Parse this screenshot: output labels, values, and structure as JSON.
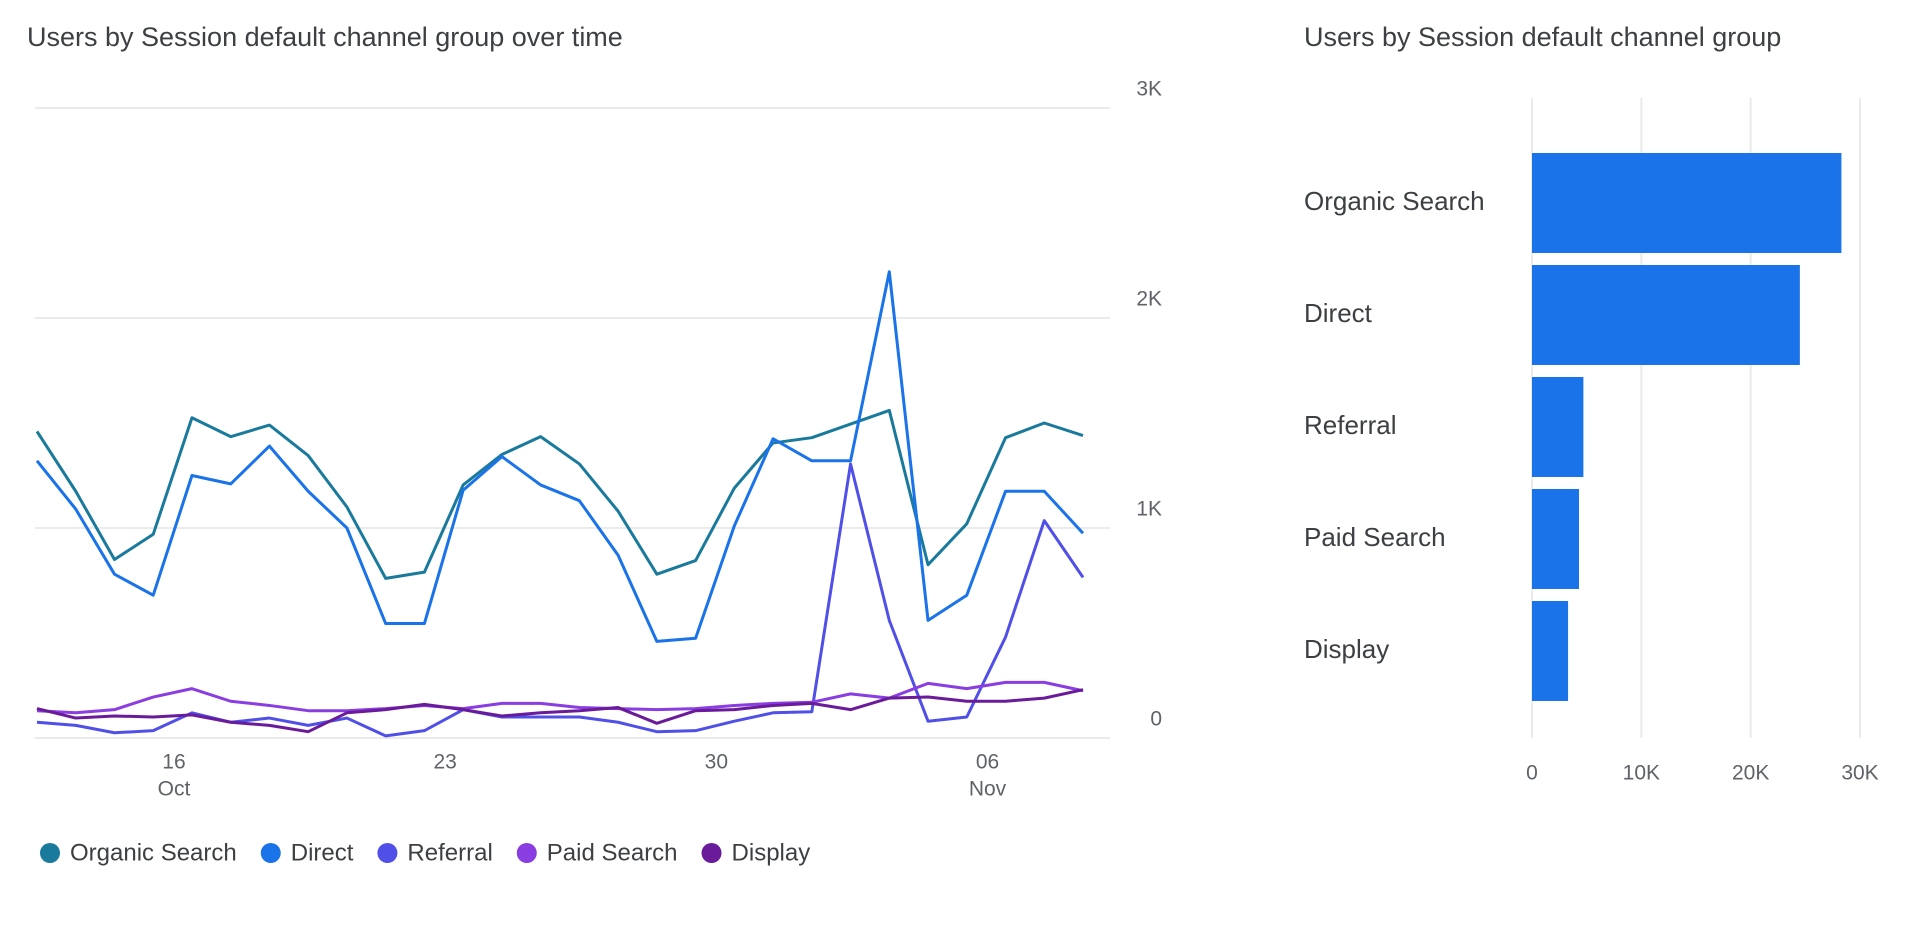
{
  "chart_data": [
    {
      "type": "line",
      "title": "Users by Session default channel group over time",
      "categories": [
        null,
        null,
        null,
        null,
        "16",
        null,
        null,
        null,
        null,
        null,
        null,
        "23",
        null,
        null,
        null,
        null,
        null,
        null,
        "30",
        null,
        null,
        null,
        null,
        null,
        null,
        "06",
        null,
        null
      ],
      "category_months": [
        null,
        null,
        null,
        null,
        "Oct",
        null,
        null,
        null,
        null,
        null,
        null,
        null,
        null,
        null,
        null,
        null,
        null,
        null,
        null,
        null,
        null,
        null,
        null,
        null,
        null,
        "Nov",
        null,
        null
      ],
      "ylim": [
        0,
        3000
      ],
      "yticks": [
        0,
        {
          "value": 1000,
          "label": "1K"
        },
        {
          "value": 2000,
          "label": "2K"
        },
        {
          "value": 3000,
          "label": "3K"
        }
      ],
      "grid": true,
      "series": [
        {
          "name": "Organic Search",
          "color": "#1a7a9c",
          "values": [
            1460,
            1175,
            850,
            970,
            1525,
            1435,
            1490,
            1345,
            1100,
            760,
            790,
            1205,
            1350,
            1435,
            1305,
            1080,
            780,
            845,
            1190,
            1405,
            1430,
            1495,
            1560,
            825,
            1020,
            1430,
            1500,
            1440
          ]
        },
        {
          "name": "Direct",
          "color": "#1a73e8",
          "values": [
            1320,
            1090,
            780,
            680,
            1250,
            1210,
            1390,
            1175,
            1000,
            545,
            545,
            1180,
            1340,
            1205,
            1130,
            870,
            460,
            475,
            1010,
            1425,
            1320,
            1320,
            2220,
            560,
            680,
            1175,
            1175,
            975
          ]
        },
        {
          "name": "Referral",
          "color": "#5050e8",
          "values": [
            75,
            60,
            25,
            35,
            120,
            75,
            95,
            60,
            95,
            10,
            35,
            135,
            100,
            100,
            100,
            75,
            30,
            35,
            80,
            120,
            125,
            1305,
            560,
            80,
            100,
            480,
            1035,
            765
          ]
        },
        {
          "name": "Paid Search",
          "color": "#8a3de0",
          "values": [
            130,
            120,
            135,
            195,
            235,
            175,
            155,
            130,
            130,
            140,
            155,
            140,
            165,
            165,
            145,
            140,
            135,
            140,
            155,
            165,
            170,
            210,
            190,
            260,
            235,
            265,
            265,
            225
          ]
        },
        {
          "name": "Display",
          "color": "#6a1b9a",
          "values": [
            140,
            95,
            105,
            100,
            110,
            75,
            60,
            30,
            120,
            135,
            160,
            135,
            105,
            120,
            130,
            145,
            70,
            130,
            135,
            155,
            165,
            135,
            190,
            195,
            175,
            175,
            190,
            230
          ]
        }
      ]
    },
    {
      "type": "hbar",
      "title": "Users by Session default channel group",
      "categories": [
        "Organic Search",
        "Direct",
        "Referral",
        "Paid Search",
        "Display"
      ],
      "values": [
        28300,
        24500,
        4700,
        4300,
        3300
      ],
      "color": "#1a73e8",
      "xlim": [
        0,
        30000
      ],
      "xticks": [
        0,
        {
          "value": 10000,
          "label": "10K"
        },
        {
          "value": 20000,
          "label": "20K"
        },
        {
          "value": 30000,
          "label": "30K"
        }
      ],
      "grid": true
    }
  ]
}
